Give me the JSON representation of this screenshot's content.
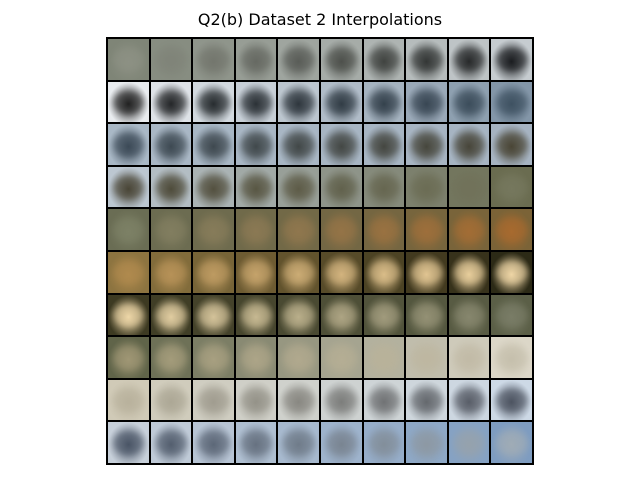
{
  "figure": {
    "title": "Q2(b) Dataset 2 Interpolations"
  },
  "grid": {
    "rows": 10,
    "cols": 10,
    "row_palettes": [
      {
        "start_bg": "#7f8577",
        "end_bg": "#c6ccd0",
        "start_fg": "#8d9184",
        "end_fg": "#1b1d20"
      },
      {
        "start_bg": "#e9ecef",
        "end_bg": "#8396a8",
        "start_fg": "#222222",
        "end_fg": "#3f5262"
      },
      {
        "start_bg": "#a9b8c6",
        "end_bg": "#a6b3c1",
        "start_fg": "#3c4a57",
        "end_fg": "#4a4636"
      },
      {
        "start_bg": "#bcc7d1",
        "end_bg": "#6a6c50",
        "start_fg": "#4a4637",
        "end_fg": "#76785e"
      },
      {
        "start_bg": "#6a6d54",
        "end_bg": "#7b6337",
        "start_fg": "#7d8166",
        "end_fg": "#a86a2f"
      },
      {
        "start_bg": "#8d7440",
        "end_bg": "#2c2a16",
        "start_fg": "#b08a4e",
        "end_fg": "#efd6a6"
      },
      {
        "start_bg": "#3d3a22",
        "end_bg": "#5b5f47",
        "start_fg": "#eed7a8",
        "end_fg": "#7a7d67"
      },
      {
        "start_bg": "#606449",
        "end_bg": "#dcd7c8",
        "start_fg": "#a09775",
        "end_fg": "#c6c0ad"
      },
      {
        "start_bg": "#d0cab7",
        "end_bg": "#cdd9e6",
        "start_fg": "#b9b29d",
        "end_fg": "#4d5461"
      },
      {
        "start_bg": "#c7d0da",
        "end_bg": "#7e9cc0",
        "start_fg": "#4a5566",
        "end_fg": "#a0acb6"
      }
    ]
  }
}
